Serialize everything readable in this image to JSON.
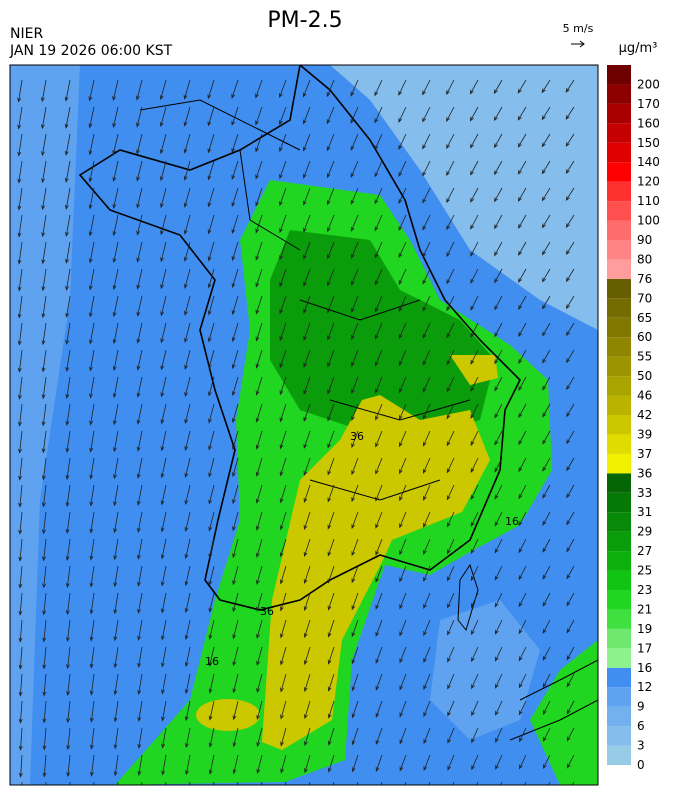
{
  "header": {
    "title": "PM-2.5",
    "agency": "NIER",
    "timestamp": "JAN 19 2026 06:00 KST",
    "wind_scale": "5 m/s"
  },
  "colorbar": {
    "unit": "μg/m³",
    "labels": [
      0,
      3,
      6,
      9,
      12,
      16,
      17,
      19,
      21,
      23,
      25,
      27,
      29,
      31,
      33,
      36,
      37,
      39,
      42,
      46,
      50,
      55,
      60,
      65,
      70,
      76,
      80,
      90,
      100,
      110,
      120,
      140,
      150,
      160,
      170,
      200
    ],
    "colors": [
      "#98cbe6",
      "#85bdec",
      "#72b0ee",
      "#5fa2f0",
      "#3f8ef0",
      "#8cf28c",
      "#6ee86e",
      "#3fe03f",
      "#20d620",
      "#12c412",
      "#0cb00c",
      "#0a9c0a",
      "#088a08",
      "#067806",
      "#056605",
      "#f0f000",
      "#e0dc00",
      "#ccc800",
      "#bab400",
      "#aaa400",
      "#9c9400",
      "#8e8600",
      "#807800",
      "#746c00",
      "#665e00",
      "#ff9c9c",
      "#ff8484",
      "#ff6c6c",
      "#ff5050",
      "#ff3030",
      "#ff0000",
      "#e00000",
      "#c40000",
      "#a80000",
      "#8c0000",
      "#6e0000"
    ]
  },
  "contour_labels": [
    "16",
    "36"
  ]
}
